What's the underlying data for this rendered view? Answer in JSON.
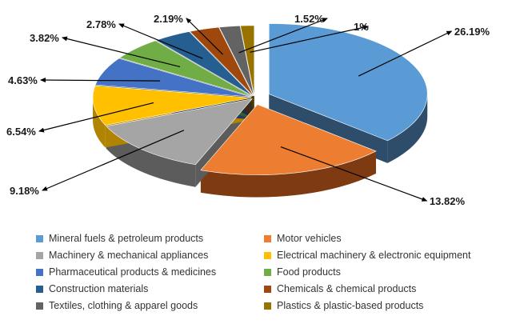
{
  "chart_data": {
    "type": "pie",
    "title": "",
    "legend_position": "bottom",
    "slices": [
      {
        "label": "Mineral fuels & petroleum products",
        "value": 26.19,
        "value_label": "26.19%",
        "color": "#5B9BD5",
        "shade": "#2E4D6A"
      },
      {
        "label": "Motor vehicles",
        "value": 13.82,
        "value_label": "13.82%",
        "color": "#ED7D31",
        "shade": "#7E3B12"
      },
      {
        "label": "Machinery & mechanical appliances",
        "value": 9.18,
        "value_label": "9.18%",
        "color": "#A5A5A5",
        "shade": "#5C5C5C"
      },
      {
        "label": "Electrical machinery & electronic equipment",
        "value": 6.54,
        "value_label": "6.54%",
        "color": "#FFC000",
        "shade": "#B08300"
      },
      {
        "label": "Pharmaceutical products & medicines",
        "value": 4.63,
        "value_label": "4.63%",
        "color": "#4472C4",
        "shade": "#233B66"
      },
      {
        "label": "Food products",
        "value": 3.82,
        "value_label": "3.82%",
        "color": "#70AD47",
        "shade": "#3A5C24"
      },
      {
        "label": "Construction materials",
        "value": 2.78,
        "value_label": "2.78%",
        "color": "#255E91",
        "shade": "#132F49"
      },
      {
        "label": "Chemicals & chemical products",
        "value": 2.19,
        "value_label": "2.19%",
        "color": "#9E480E",
        "shade": "#4F2407"
      },
      {
        "label": "Textiles, clothing & apparel goods",
        "value": 1.52,
        "value_label": "1.52%",
        "color": "#636363",
        "shade": "#2E2E2E"
      },
      {
        "label": "Plastics & plastic-based products",
        "value": 1.0,
        "value_label": "1%",
        "color": "#997300",
        "shade": "#4D3A00"
      }
    ]
  }
}
